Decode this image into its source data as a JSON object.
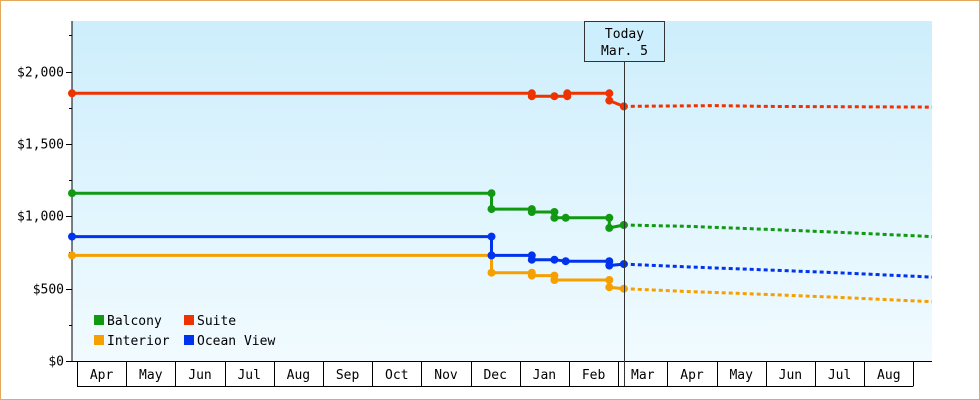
{
  "chart_data": {
    "type": "line",
    "x_unit": "date",
    "y_axis": {
      "ticks": [
        0,
        500,
        1000,
        1500,
        2000
      ],
      "tick_labels": [
        "$0",
        "$500",
        "$1,000",
        "$1,500",
        "$2,000"
      ],
      "ylim": [
        0,
        2350
      ]
    },
    "x_axis": {
      "months": [
        "Apr",
        "May",
        "Jun",
        "Jul",
        "Aug",
        "Sep",
        "Oct",
        "Nov",
        "Dec",
        "Jan",
        "Feb",
        "Mar",
        "Apr",
        "May",
        "Jun",
        "Jul",
        "Aug"
      ],
      "range": [
        "2020-03-28",
        "2021-09-12"
      ]
    },
    "today": {
      "label": "Today",
      "date_label": "Mar. 5",
      "date": "2021-03-05"
    },
    "legend": {
      "placement": "bottom-left"
    },
    "series": [
      {
        "name": "Balcony",
        "color": "#119911",
        "history": [
          [
            "2020-03-28",
            1160
          ],
          [
            "2020-12-13",
            1160
          ],
          [
            "2020-12-13",
            1050
          ],
          [
            "2021-01-07",
            1050
          ],
          [
            "2021-01-07",
            1030
          ],
          [
            "2021-01-21",
            1030
          ],
          [
            "2021-01-21",
            990
          ],
          [
            "2021-01-28",
            990
          ],
          [
            "2021-02-24",
            990
          ],
          [
            "2021-02-24",
            920
          ],
          [
            "2021-03-05",
            940
          ]
        ],
        "forecast": [
          [
            "2021-03-05",
            940
          ],
          [
            "2021-04-15",
            930
          ],
          [
            "2021-06-01",
            910
          ],
          [
            "2021-07-15",
            890
          ],
          [
            "2021-09-12",
            860
          ]
        ]
      },
      {
        "name": "Suite",
        "color": "#ee3300",
        "history": [
          [
            "2020-03-28",
            1850
          ],
          [
            "2021-01-07",
            1850
          ],
          [
            "2021-01-07",
            1830
          ],
          [
            "2021-01-21",
            1830
          ],
          [
            "2021-01-29",
            1830
          ],
          [
            "2021-01-29",
            1850
          ],
          [
            "2021-02-24",
            1850
          ],
          [
            "2021-02-24",
            1800
          ],
          [
            "2021-03-05",
            1760
          ]
        ],
        "forecast": [
          [
            "2021-03-05",
            1760
          ],
          [
            "2021-05-01",
            1765
          ],
          [
            "2021-06-01",
            1760
          ],
          [
            "2021-09-12",
            1755
          ]
        ]
      },
      {
        "name": "Interior",
        "color": "#f5a000",
        "history": [
          [
            "2020-03-28",
            730
          ],
          [
            "2020-12-13",
            730
          ],
          [
            "2020-12-13",
            610
          ],
          [
            "2021-01-07",
            610
          ],
          [
            "2021-01-07",
            590
          ],
          [
            "2021-01-21",
            590
          ],
          [
            "2021-01-21",
            560
          ],
          [
            "2021-02-24",
            560
          ],
          [
            "2021-02-24",
            510
          ],
          [
            "2021-03-05",
            500
          ]
        ],
        "forecast": [
          [
            "2021-03-05",
            500
          ],
          [
            "2021-04-15",
            480
          ],
          [
            "2021-06-01",
            460
          ],
          [
            "2021-07-15",
            440
          ],
          [
            "2021-09-12",
            410
          ]
        ]
      },
      {
        "name": "Ocean View",
        "color": "#0033ee",
        "history": [
          [
            "2020-03-28",
            860
          ],
          [
            "2020-12-13",
            860
          ],
          [
            "2020-12-13",
            730
          ],
          [
            "2021-01-07",
            730
          ],
          [
            "2021-01-07",
            700
          ],
          [
            "2021-01-21",
            700
          ],
          [
            "2021-01-28",
            690
          ],
          [
            "2021-02-24",
            690
          ],
          [
            "2021-02-24",
            660
          ],
          [
            "2021-03-05",
            670
          ]
        ],
        "forecast": [
          [
            "2021-03-05",
            670
          ],
          [
            "2021-04-15",
            650
          ],
          [
            "2021-06-01",
            630
          ],
          [
            "2021-07-15",
            610
          ],
          [
            "2021-09-12",
            580
          ]
        ]
      }
    ]
  }
}
